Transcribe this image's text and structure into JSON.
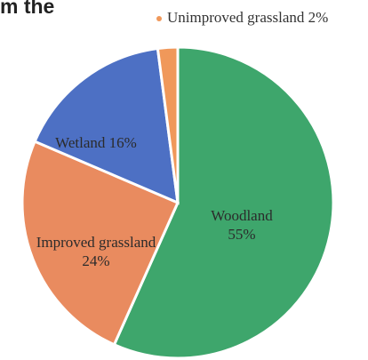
{
  "chart_data": {
    "type": "pie",
    "title": "m the",
    "categories": [
      "Woodland",
      "Improved grassland",
      "Wetland",
      "Unimproved grassland"
    ],
    "values": [
      55,
      24,
      16,
      2
    ],
    "value_labels": [
      "55%",
      "24%",
      "16%",
      "2%"
    ],
    "colors": [
      "#3ea66c",
      "#e98b5f",
      "#4d70c4",
      "#f0985a"
    ]
  }
}
